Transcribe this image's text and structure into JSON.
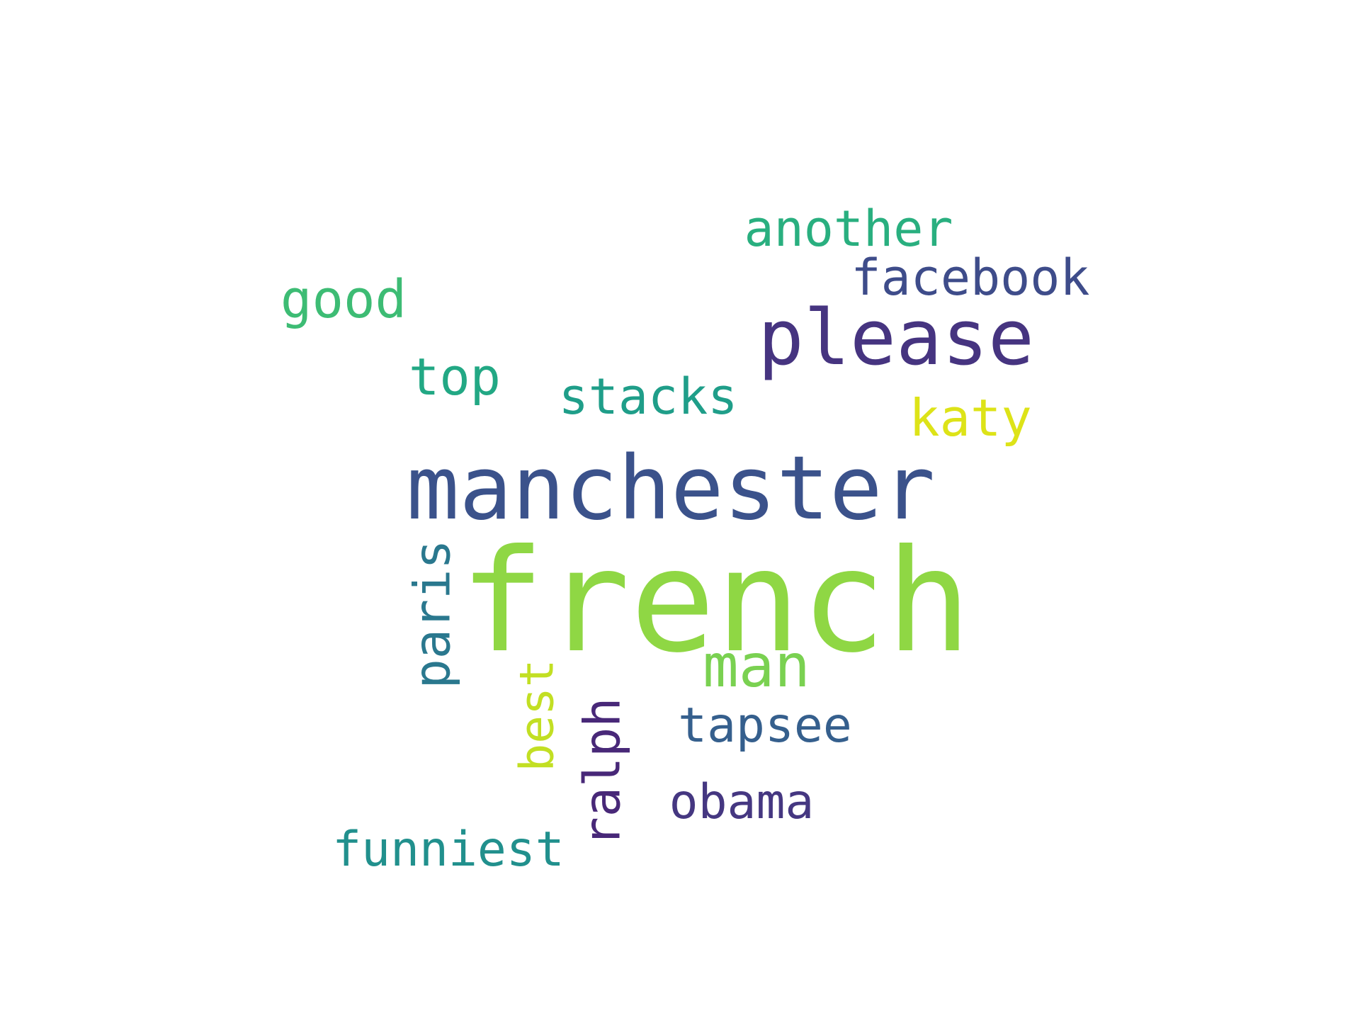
{
  "words": [
    {
      "text": "french",
      "color": "#8fd744",
      "orientation": "horizontal"
    },
    {
      "text": "manchester",
      "color": "#3b528b",
      "orientation": "horizontal"
    },
    {
      "text": "please",
      "color": "#463480",
      "orientation": "horizontal"
    },
    {
      "text": "man",
      "color": "#7ad151",
      "orientation": "horizontal"
    },
    {
      "text": "another",
      "color": "#29af7f",
      "orientation": "horizontal"
    },
    {
      "text": "facebook",
      "color": "#3e4c8a",
      "orientation": "horizontal"
    },
    {
      "text": "good",
      "color": "#3dbc74",
      "orientation": "horizontal"
    },
    {
      "text": "top",
      "color": "#22a884",
      "orientation": "horizontal"
    },
    {
      "text": "stacks",
      "color": "#1f9e89",
      "orientation": "horizontal"
    },
    {
      "text": "katy",
      "color": "#dde318",
      "orientation": "horizontal"
    },
    {
      "text": "paris",
      "color": "#2a788e",
      "orientation": "vertical"
    },
    {
      "text": "best",
      "color": "#c2df23",
      "orientation": "vertical"
    },
    {
      "text": "ralph",
      "color": "#482878",
      "orientation": "vertical"
    },
    {
      "text": "tapsee",
      "color": "#355f8d",
      "orientation": "horizontal"
    },
    {
      "text": "obama",
      "color": "#453781",
      "orientation": "horizontal"
    },
    {
      "text": "funniest",
      "color": "#21908d",
      "orientation": "horizontal"
    }
  ]
}
